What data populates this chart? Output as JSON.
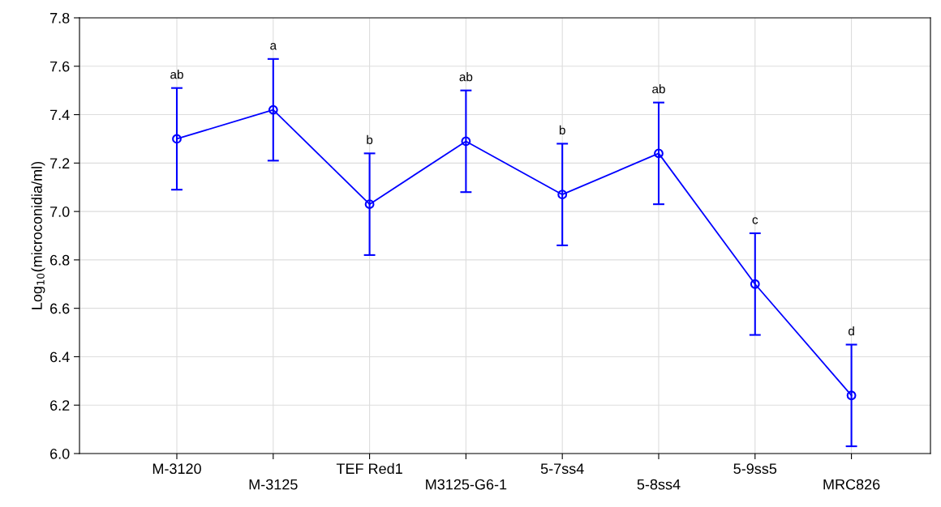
{
  "chart_data": {
    "type": "line",
    "ylabel": "Log$_{10}$(microconidia/ml)",
    "categories": [
      "M-3120",
      "M-3125",
      "TEF Red1",
      "M3125-G6-1",
      "5-7ss4",
      "5-8ss4",
      "5-9ss5",
      "MRC826"
    ],
    "series": [
      {
        "color": "#0000ff",
        "values": [
          7.3,
          7.42,
          7.03,
          7.29,
          7.07,
          7.24,
          6.7,
          6.24
        ],
        "errors": [
          0.21,
          0.21,
          0.21,
          0.21,
          0.21,
          0.21,
          0.21,
          0.21
        ]
      }
    ],
    "ylim": [
      6.0,
      7.8
    ],
    "yticks": [
      {
        "value": 6.0,
        "label": "6.0"
      },
      {
        "value": 6.2,
        "label": "6.2"
      },
      {
        "value": 6.4,
        "label": "6.4"
      },
      {
        "value": 6.6,
        "label": "6.6"
      },
      {
        "value": 6.8,
        "label": "6.8"
      },
      {
        "value": 7.0,
        "label": "7.0"
      },
      {
        "value": 7.2,
        "label": "7.2"
      },
      {
        "value": 7.4,
        "label": "7.4"
      },
      {
        "value": 7.6,
        "label": "7.6"
      },
      {
        "value": 7.8,
        "label": "7.8"
      }
    ],
    "grid": true,
    "marker": "circle",
    "line_style": "solid",
    "annotations": [
      {
        "text": "ab",
        "x": "M-3120",
        "y": 7.51
      },
      {
        "text": "a",
        "x": "M-3125",
        "y": 7.63
      },
      {
        "text": "b",
        "x": "TEF Red1",
        "y": 7.24
      },
      {
        "text": "ab",
        "x": "M3125-G6-1",
        "y": 7.5
      },
      {
        "text": "b",
        "x": "5-7ss4",
        "y": 7.28
      },
      {
        "text": "ab",
        "x": "5-8ss4",
        "y": 7.45
      },
      {
        "text": "c",
        "x": "5-9ss5",
        "y": 6.91
      },
      {
        "text": "d",
        "x": "MRC826",
        "y": 6.45
      }
    ]
  }
}
